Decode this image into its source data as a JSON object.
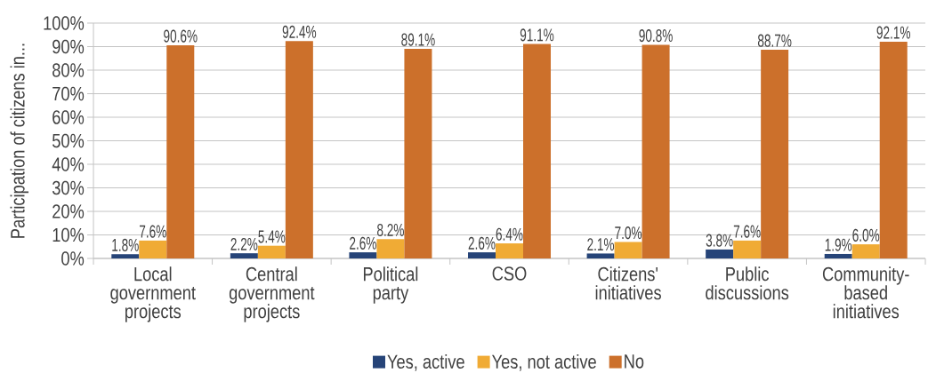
{
  "chart_data": {
    "type": "bar",
    "ylabel": "Participation of citizens in...",
    "categories": [
      "Local government projects",
      "Central government projects",
      "Political party",
      "CSO",
      "Citizens' initiatives",
      "Public discussions",
      "Community-based initiatives"
    ],
    "series": [
      {
        "name": "Yes, active",
        "color": "#264478",
        "values": [
          1.8,
          2.2,
          2.6,
          2.6,
          2.1,
          3.8,
          1.9
        ],
        "value_labels": [
          "1.8%",
          "2.2%",
          "2.6%",
          "2.6%",
          "2.1%",
          "3.8%",
          "1.9%"
        ]
      },
      {
        "name": "Yes, not active",
        "color": "#f0ab35",
        "values": [
          7.6,
          5.4,
          8.2,
          6.4,
          7.0,
          7.6,
          6.0
        ],
        "value_labels": [
          "7.6%",
          "5.4%",
          "8.2%",
          "6.4%",
          "7.0%",
          "7.6%",
          "6.0%"
        ]
      },
      {
        "name": "No",
        "color": "#cc702b",
        "values": [
          90.6,
          92.4,
          89.1,
          91.1,
          90.8,
          88.7,
          92.1
        ],
        "value_labels": [
          "90.6%",
          "92.4%",
          "89.1%",
          "91.1%",
          "90.8%",
          "88.7%",
          "92.1%"
        ]
      }
    ],
    "ylim": [
      0,
      100
    ],
    "yticks": [
      {
        "value": 0,
        "label": "0%"
      },
      {
        "value": 10,
        "label": "10%"
      },
      {
        "value": 20,
        "label": "20%"
      },
      {
        "value": 30,
        "label": "30%"
      },
      {
        "value": 40,
        "label": "40%"
      },
      {
        "value": 50,
        "label": "50%"
      },
      {
        "value": 60,
        "label": "60%"
      },
      {
        "value": 70,
        "label": "70%"
      },
      {
        "value": 80,
        "label": "80%"
      },
      {
        "value": 90,
        "label": "90%"
      },
      {
        "value": 100,
        "label": "100%"
      }
    ],
    "grid": "y",
    "legend": "bottom"
  }
}
